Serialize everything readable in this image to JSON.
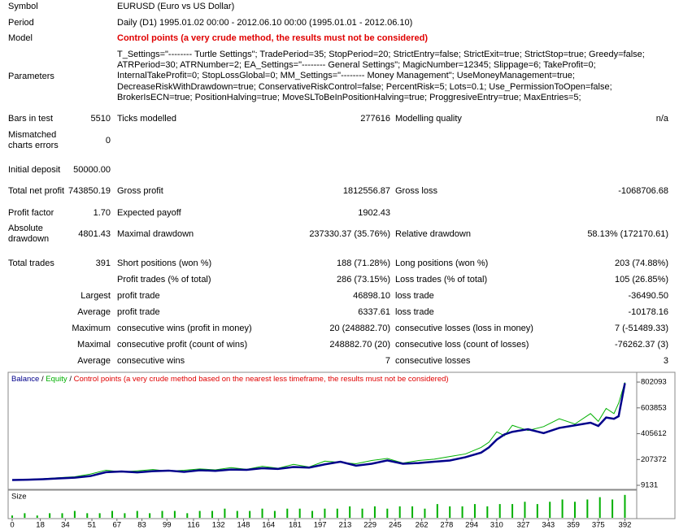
{
  "report": {
    "rows": [
      {
        "label": "Symbol",
        "text": "EURUSD (Euro vs US Dollar)"
      },
      {
        "label": "Period",
        "text": "Daily (D1) 1995.01.02 00:00 - 2012.06.10 00:00 (1995.01.01 - 2012.06.10)"
      },
      {
        "label": "Model",
        "text": "Control points (a very crude method, the results must not be considered)",
        "color": "#e00000"
      },
      {
        "label": "Parameters",
        "lines": [
          "T_Settings=\"-------- Turtle Settings\"; TradePeriod=35; StopPeriod=20; StrictEntry=false; StrictExit=true; StrictStop=true; Greedy=false;",
          "ATRPeriod=30; ATRNumber=2; EA_Settings=\"-------- General Settings\"; MagicNumber=12345; Slippage=6; TakeProfit=0;",
          "InternalTakeProfit=0; StopLossGlobal=0; MM_Settings=\"-------- Money Management\"; UseMoneyManagement=true;",
          "DecreaseRiskWithDrawdown=true; ConservativeRiskControl=false; PercentRisk=5; Lots=0.1; Use_PermissionToOpen=false;",
          "BrokerIsECN=true; PositionHalving=true; MoveSLToBeInPositionHalving=true; ProggresiveEntry=true; MaxEntries=5;"
        ]
      },
      {
        "label": "Bars in test",
        "value": "5510",
        "label2": "Ticks modelled",
        "value2": "277616",
        "label3": "Modelling quality",
        "value3": "n/a"
      },
      {
        "label": "Mismatched charts errors",
        "value": "0"
      },
      {
        "label": "Initial deposit",
        "value": "50000.00"
      },
      {
        "label": "Total net profit",
        "value": "743850.19",
        "label2": "Gross profit",
        "value2": "1812556.87",
        "label3": "Gross loss",
        "value3": "-1068706.68"
      },
      {
        "label": "Profit factor",
        "value": "1.70",
        "label2": "Expected payoff",
        "value2": "1902.43"
      },
      {
        "label": "Absolute drawdown",
        "value": "4801.43",
        "label2": "Maximal drawdown",
        "value2": "237330.37 (35.76%)",
        "label3": "Relative drawdown",
        "value3": "58.13% (172170.61)"
      },
      {
        "label": "Total trades",
        "value": "391",
        "label2": "Short positions (won %)",
        "value2": "188 (71.28%)",
        "label3": "Long positions (won %)",
        "value3": "203 (74.88%)"
      },
      {
        "label2": "Profit trades (% of total)",
        "value2": "286 (73.15%)",
        "label3": "Loss trades (% of total)",
        "value3": "105 (26.85%)"
      },
      {
        "label": "Largest",
        "label2": "profit trade",
        "value2": "46898.10",
        "label3": "loss trade",
        "value3": "-36490.50"
      },
      {
        "label": "Average",
        "label2": "profit trade",
        "value2": "6337.61",
        "label3": "loss trade",
        "value3": "-10178.16"
      },
      {
        "label": "Maximum",
        "label2": "consecutive wins (profit in money)",
        "value2": "20 (248882.70)",
        "label3": "consecutive losses (loss in money)",
        "value3": "7 (-51489.33)"
      },
      {
        "label": "Maximal",
        "label2": "consecutive profit (count of wins)",
        "value2": "248882.70 (20)",
        "label3": "consecutive loss (count of losses)",
        "value3": "-76262.37 (3)"
      },
      {
        "label": "Average",
        "label2": "consecutive wins",
        "value2": "7",
        "label3": "consecutive losses",
        "value3": "3"
      }
    ]
  },
  "chart_data": {
    "type": "line",
    "legend_separator": "/",
    "note": "Control points (a very crude method based on the nearest less timeframe, the results must not be considered)",
    "note_color": "#e00000",
    "x": [
      0,
      10,
      20,
      30,
      40,
      50,
      60,
      70,
      80,
      90,
      100,
      110,
      120,
      130,
      140,
      150,
      160,
      170,
      180,
      190,
      200,
      210,
      220,
      230,
      240,
      250,
      260,
      270,
      280,
      290,
      300,
      305,
      310,
      315,
      320,
      330,
      340,
      350,
      360,
      370,
      375,
      380,
      385,
      388,
      392
    ],
    "series": [
      {
        "name": "Balance",
        "color": "#00008b",
        "values": [
          50000,
          52000,
          56000,
          62000,
          68000,
          80000,
          110000,
          115000,
          108000,
          118000,
          122000,
          112000,
          125000,
          120000,
          130000,
          128000,
          140000,
          135000,
          150000,
          145000,
          170000,
          190000,
          160000,
          175000,
          200000,
          175000,
          180000,
          190000,
          200000,
          225000,
          260000,
          300000,
          360000,
          400000,
          420000,
          440000,
          410000,
          450000,
          470000,
          490000,
          465000,
          530000,
          520000,
          540000,
          793850
        ]
      },
      {
        "name": "Equity",
        "color": "#00b000",
        "values": [
          50000,
          55000,
          60000,
          68000,
          75000,
          95000,
          125000,
          112000,
          120000,
          130000,
          118000,
          125000,
          135000,
          128000,
          145000,
          132000,
          155000,
          140000,
          170000,
          150000,
          195000,
          185000,
          175000,
          200000,
          215000,
          180000,
          200000,
          210000,
          230000,
          250000,
          300000,
          340000,
          420000,
          390000,
          470000,
          430000,
          460000,
          520000,
          480000,
          560000,
          500000,
          600000,
          560000,
          640000,
          800000
        ]
      }
    ],
    "xlim": [
      0,
      398
    ],
    "xticks": [
      0,
      18,
      34,
      51,
      67,
      83,
      99,
      116,
      132,
      148,
      164,
      181,
      197,
      213,
      229,
      245,
      262,
      278,
      294,
      310,
      327,
      343,
      359,
      375,
      392
    ],
    "ylim": [
      -22000,
      871000
    ],
    "yticks": [
      9131,
      207372,
      405612,
      603853,
      802093
    ],
    "size": {
      "name": "Size",
      "color": "#00b000",
      "ylim": [
        0,
        11
      ],
      "x": [
        0,
        8,
        16,
        24,
        32,
        40,
        48,
        56,
        64,
        72,
        80,
        88,
        96,
        104,
        112,
        120,
        128,
        136,
        144,
        152,
        160,
        168,
        176,
        184,
        192,
        200,
        208,
        216,
        224,
        232,
        240,
        248,
        256,
        264,
        272,
        280,
        288,
        296,
        304,
        312,
        320,
        328,
        336,
        344,
        352,
        360,
        368,
        376,
        384,
        392
      ],
      "values": [
        1,
        2,
        1,
        2,
        2,
        3,
        2,
        2,
        3,
        2,
        3,
        2,
        3,
        3,
        2,
        3,
        3,
        4,
        3,
        3,
        4,
        3,
        4,
        4,
        3,
        4,
        4,
        5,
        4,
        5,
        4,
        5,
        5,
        4,
        6,
        5,
        5,
        6,
        5,
        6,
        6,
        7,
        6,
        7,
        8,
        7,
        8,
        9,
        8,
        10
      ]
    }
  }
}
